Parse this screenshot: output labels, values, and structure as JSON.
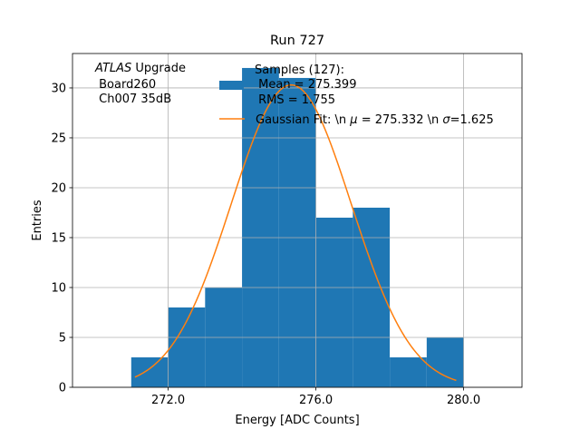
{
  "chart_data": {
    "type": "bar",
    "title": "Run 727",
    "xlabel": "Energy [ADC Counts]",
    "ylabel": "Entries",
    "xlim": [
      269.41,
      281.58
    ],
    "ylim": [
      0,
      33.45
    ],
    "grid": true,
    "xticks": [
      272,
      276,
      280
    ],
    "xtick_labels": [
      "272.0",
      "276.0",
      "280.0"
    ],
    "yticks": [
      0,
      5,
      10,
      15,
      20,
      25,
      30
    ],
    "ytick_labels": [
      "0",
      "5",
      "10",
      "15",
      "20",
      "25",
      "30"
    ],
    "bin_edges": [
      271,
      272,
      273,
      274,
      275,
      276,
      277,
      278,
      279,
      280
    ],
    "counts": [
      3,
      8,
      10,
      32,
      31,
      17,
      18,
      3,
      5
    ],
    "bar_color": "#1f77b4",
    "fit": {
      "mean": 275.332,
      "sigma": 1.625,
      "amplitude": 30.3,
      "x_range": [
        271.1,
        279.8
      ],
      "color": "#ff7f0e"
    },
    "legend_placement": "top-center",
    "legend": {
      "hist_lines": [
        "Samples (127):",
        " Mean = 275.399",
        " RMS = 1.755"
      ],
      "fit_label_prefix": "Gaussian Fit: \\n ",
      "fit_label_mu": "μ",
      "fit_label_mid": " = 275.332 \\n ",
      "fit_label_sigma": "σ",
      "fit_label_end": "=1.625"
    },
    "annotation": {
      "atlas": "ATLAS",
      "upgrade": " Upgrade",
      "line2": " Board260",
      "line3": " Ch007 35dB"
    }
  }
}
